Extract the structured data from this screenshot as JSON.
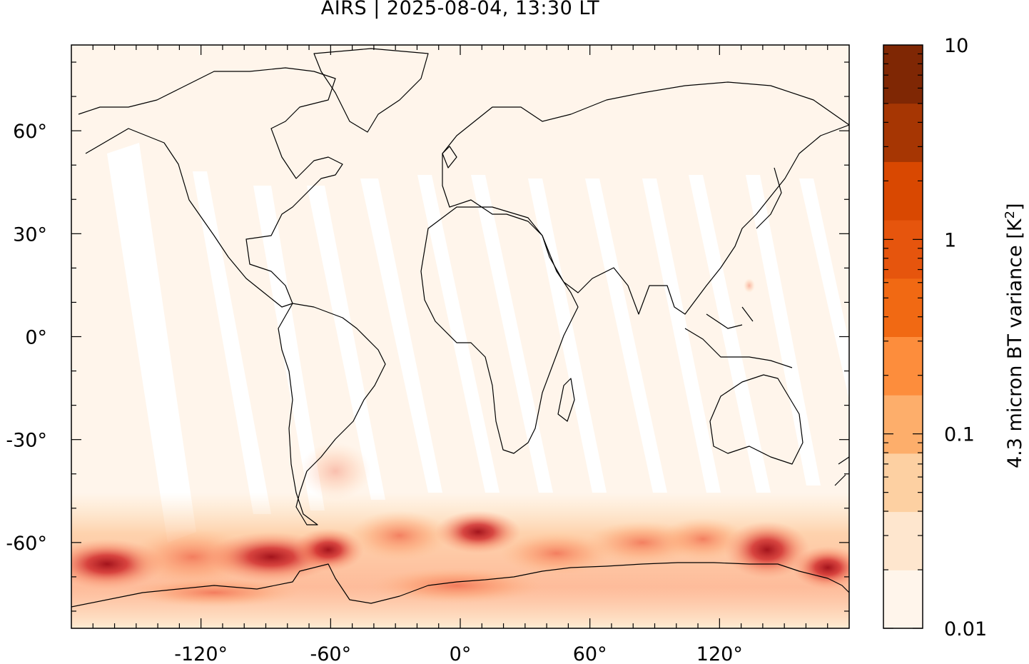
{
  "title": "AIRS | 2025-08-04, 13:30 LT",
  "map": {
    "projection": "equirectangular",
    "lon_range": [
      -180,
      180
    ],
    "lat_range": [
      -85,
      85
    ],
    "lon_ticks": [
      {
        "value": -120,
        "label": "-120°"
      },
      {
        "value": -60,
        "label": "-60°"
      },
      {
        "value": 0,
        "label": "0°"
      },
      {
        "value": 60,
        "label": "60°"
      },
      {
        "value": 120,
        "label": "120°"
      }
    ],
    "lat_ticks": [
      {
        "value": 60,
        "label": "60°"
      },
      {
        "value": 30,
        "label": "30°"
      },
      {
        "value": 0,
        "label": "0°"
      },
      {
        "value": -30,
        "label": "-30°"
      },
      {
        "value": -60,
        "label": "-60°"
      }
    ],
    "background_color": "#fff5eb",
    "coastline_color": "#000000"
  },
  "colorbar": {
    "label_prefix": "4.3 micron BT variance [K",
    "label_sup": "2",
    "label_suffix": "]",
    "scale": "log",
    "range": [
      0.01,
      10
    ],
    "ticks": [
      {
        "value": 10,
        "label": "10"
      },
      {
        "value": 1,
        "label": "1"
      },
      {
        "value": 0.1,
        "label": "0.1"
      },
      {
        "value": 0.01,
        "label": "0.01"
      }
    ],
    "colors": [
      "#fff5eb",
      "#fee6ce",
      "#fdd0a2",
      "#fdae6b",
      "#fd8d3c",
      "#f16913",
      "#e6550d",
      "#d94801",
      "#a63603",
      "#7f2704"
    ]
  }
}
